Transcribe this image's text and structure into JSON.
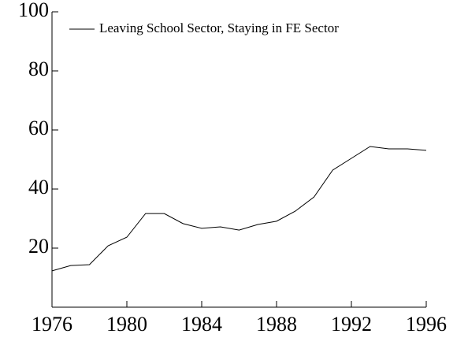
{
  "chart_data": {
    "type": "line",
    "x": [
      1976,
      1977,
      1978,
      1979,
      1980,
      1981,
      1982,
      1983,
      1984,
      1985,
      1986,
      1987,
      1988,
      1989,
      1990,
      1991,
      1992,
      1993,
      1994,
      1995,
      1996
    ],
    "series": [
      {
        "name": "Leaving School Sector,  Staying in FE Sector",
        "color": "#000000",
        "values": [
          12.3,
          14.1,
          14.4,
          20.8,
          23.7,
          31.7,
          31.7,
          28.3,
          26.7,
          27.2,
          26.1,
          28,
          29.1,
          32.5,
          37.3,
          46.4,
          50.4,
          54.4,
          53.6,
          53.6,
          53.1
        ]
      }
    ],
    "xlim": [
      1976,
      1996
    ],
    "xticks": [
      1976,
      1980,
      1984,
      1988,
      1992,
      1996
    ],
    "ylim": [
      0,
      100
    ],
    "yticks": [
      20,
      40,
      60,
      80,
      100
    ],
    "legend": "top-left"
  }
}
